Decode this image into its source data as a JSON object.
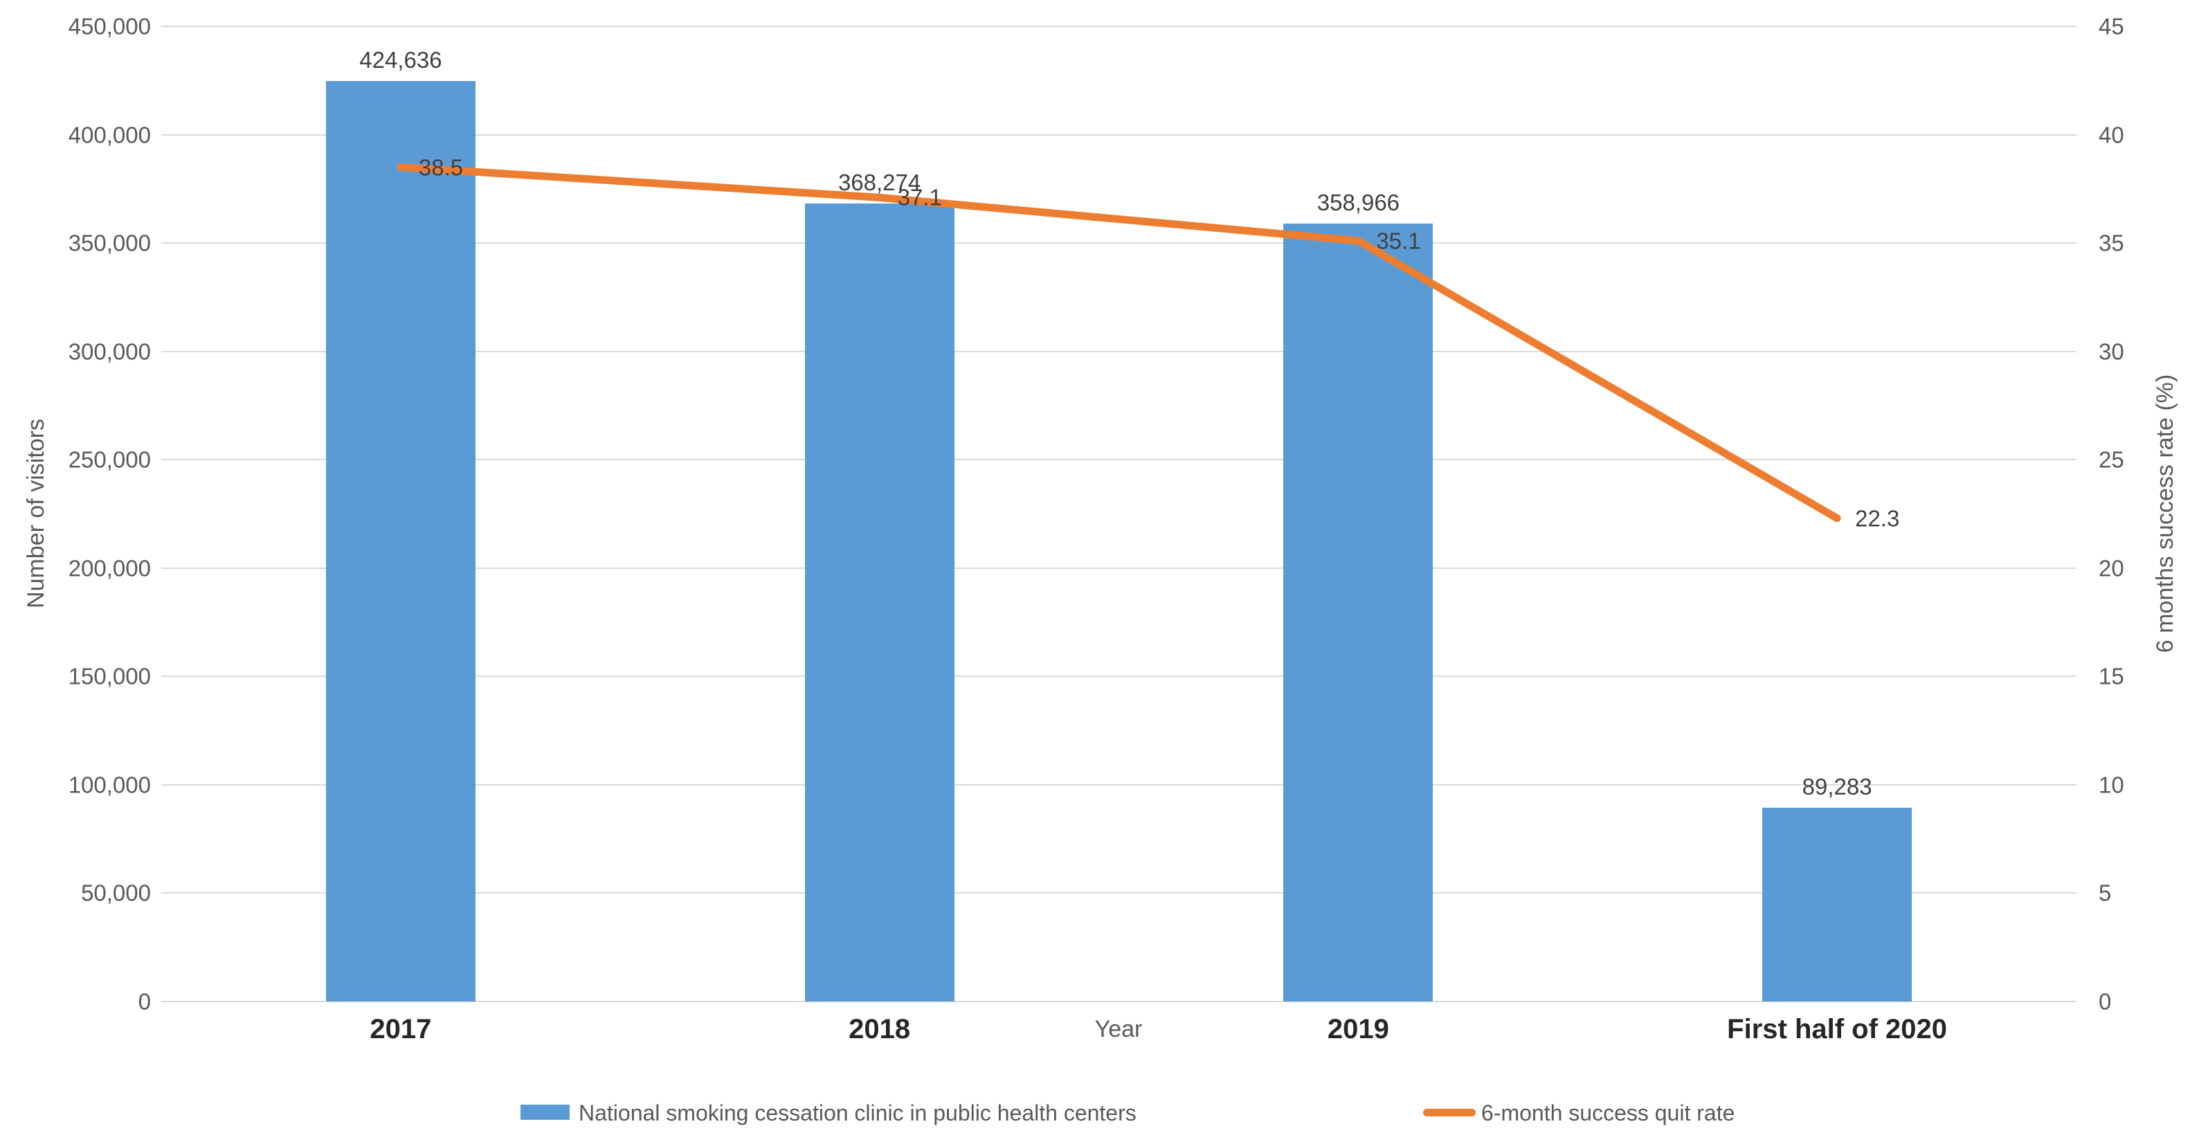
{
  "chart_data": {
    "type": "combo-bar-line",
    "categories": [
      "2017",
      "2018",
      "2019",
      "First half of 2020"
    ],
    "x_axis_title": "Year",
    "series": [
      {
        "name": "National smoking cessation clinic in public health centers",
        "type": "bar",
        "axis": "left",
        "color": "#5b9bd5",
        "values": [
          424636,
          368274,
          358966,
          89283
        ],
        "labels": [
          "424,636",
          "368,274",
          "358,966",
          "89,283"
        ]
      },
      {
        "name": "6-month success quit rate",
        "type": "line",
        "axis": "right",
        "color": "#ed7d31",
        "values": [
          38.5,
          37.1,
          35.1,
          22.3
        ],
        "labels": [
          "38.5",
          "37.1",
          "35.1",
          "22.3"
        ]
      }
    ],
    "left_axis": {
      "title": "Number of visitors",
      "min": 0,
      "max": 450000,
      "step": 50000,
      "tick_labels": [
        "0",
        "50,000",
        "100,000",
        "150,000",
        "200,000",
        "250,000",
        "300,000",
        "350,000",
        "400,000",
        "450,000"
      ]
    },
    "right_axis": {
      "title": "6 months success rate (%)",
      "min": 0,
      "max": 45,
      "step": 5,
      "tick_labels": [
        "0",
        "5",
        "10",
        "15",
        "20",
        "25",
        "30",
        "35",
        "40",
        "45"
      ]
    },
    "legend_position": "bottom",
    "grid": "horizontal",
    "colors": {
      "bar": "#5b9bd5",
      "line": "#ed7d31",
      "gridline": "#d9d9d9",
      "axis_text": "#595959",
      "data_label_text": "#404040",
      "category_text": "#262626"
    }
  }
}
